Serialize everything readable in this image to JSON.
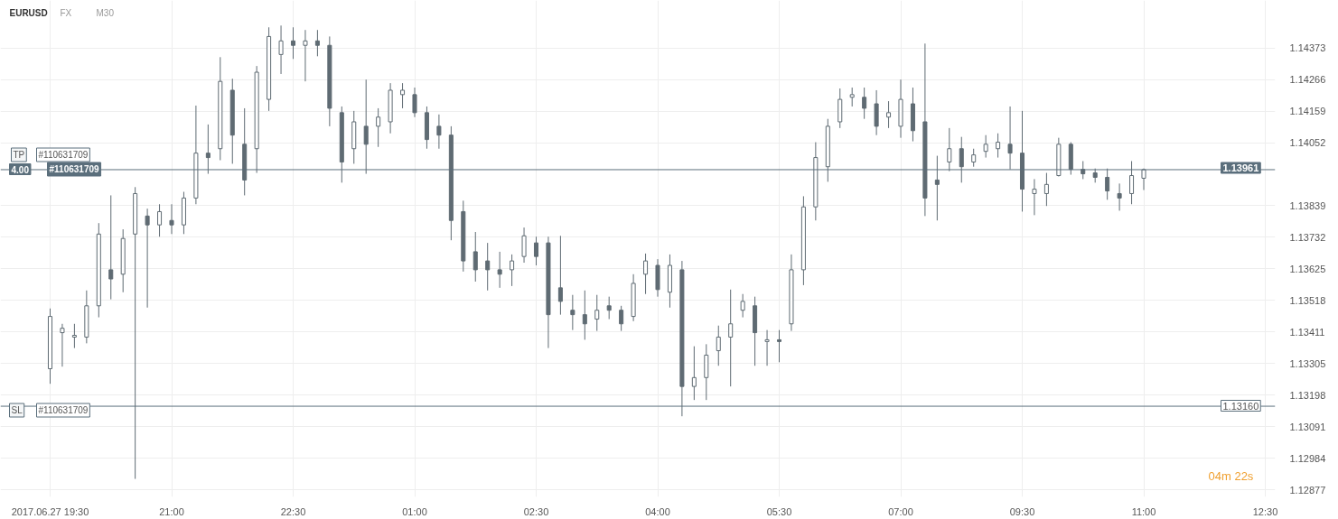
{
  "chart_data": {
    "type": "candlestick",
    "title": "EURUSD",
    "categories": [
      "2017.06.27 19:30",
      null,
      null,
      null,
      null,
      null,
      null,
      null,
      null,
      null,
      "21:00",
      null,
      null,
      null,
      null,
      null,
      null,
      null,
      null,
      null,
      "22:30",
      null,
      null,
      null,
      null,
      null,
      null,
      null,
      null,
      null,
      "01:00",
      null,
      null,
      null,
      null,
      null,
      null,
      null,
      null,
      null,
      "02:30",
      null,
      null,
      null,
      null,
      null,
      null,
      null,
      null,
      null,
      "04:00",
      null,
      null,
      null,
      null,
      null,
      null,
      null,
      null,
      null,
      "05:30",
      null,
      null,
      null,
      null,
      null,
      null,
      null,
      null,
      null,
      "07:00",
      null,
      null,
      null,
      null,
      null,
      null,
      null,
      null,
      null,
      "09:30",
      null,
      null,
      null,
      null,
      null,
      null,
      null,
      null,
      null,
      "11:00",
      null,
      null,
      null,
      null,
      null,
      null,
      null,
      null,
      null,
      "12:30"
    ],
    "ohlc": [
      [
        1.13287,
        1.13491,
        1.13236,
        1.13464
      ],
      [
        1.13409,
        1.13439,
        1.13294,
        1.13424
      ],
      [
        1.13394,
        1.13439,
        1.13357,
        1.134
      ],
      [
        1.13394,
        1.13552,
        1.13373,
        1.135
      ],
      [
        1.135,
        1.1378,
        1.13461,
        1.13743
      ],
      [
        1.13622,
        1.13874,
        1.13522,
        1.13591
      ],
      [
        1.13607,
        1.13759,
        1.13546,
        1.13728
      ],
      [
        1.13743,
        1.13902,
        1.12914,
        1.1388
      ],
      [
        1.13804,
        1.13829,
        1.13494,
        1.13774
      ],
      [
        1.13774,
        1.13844,
        1.13734,
        1.13819
      ],
      [
        1.13789,
        1.13844,
        1.13743,
        1.13774
      ],
      [
        1.13774,
        1.13886,
        1.13743,
        1.13865
      ],
      [
        1.13865,
        1.14178,
        1.13844,
        1.14017
      ],
      [
        1.14017,
        1.14114,
        1.13947,
        1.14002
      ],
      [
        1.14032,
        1.14342,
        1.13993,
        1.1426
      ],
      [
        1.1423,
        1.14269,
        1.13981,
        1.14078
      ],
      [
        1.14047,
        1.14169,
        1.13874,
        1.13926
      ],
      [
        1.14032,
        1.14312,
        1.1395,
        1.14291
      ],
      [
        1.14199,
        1.14443,
        1.1416,
        1.14412
      ],
      [
        1.14351,
        1.14449,
        1.14285,
        1.14397
      ],
      [
        1.14397,
        1.14443,
        1.14336,
        1.14382
      ],
      [
        1.14382,
        1.14434,
        1.1426,
        1.14397
      ],
      [
        1.14397,
        1.14434,
        1.14345,
        1.14382
      ],
      [
        1.14382,
        1.14412,
        1.14108,
        1.14169
      ],
      [
        1.14154,
        1.14175,
        1.13917,
        1.13987
      ],
      [
        1.14032,
        1.1416,
        1.13981,
        1.14123
      ],
      [
        1.14108,
        1.14266,
        1.13947,
        1.14047
      ],
      [
        1.14108,
        1.14169,
        1.14038,
        1.14139
      ],
      [
        1.14123,
        1.14254,
        1.14084,
        1.1423
      ],
      [
        1.14215,
        1.14254,
        1.14169,
        1.1423
      ],
      [
        1.14215,
        1.14239,
        1.14139,
        1.14154
      ],
      [
        1.14154,
        1.14175,
        1.14032,
        1.14063
      ],
      [
        1.14108,
        1.14148,
        1.14032,
        1.14078
      ],
      [
        1.14078,
        1.14108,
        1.13722,
        1.13789
      ],
      [
        1.13819,
        1.13856,
        1.13616,
        1.13652
      ],
      [
        1.13683,
        1.1375,
        1.13582,
        1.13622
      ],
      [
        1.13652,
        1.13713,
        1.13552,
        1.13622
      ],
      [
        1.13622,
        1.13683,
        1.13561,
        1.13607
      ],
      [
        1.13622,
        1.13674,
        1.13567,
        1.13652
      ],
      [
        1.13667,
        1.13765,
        1.13646,
        1.13737
      ],
      [
        1.13713,
        1.13734,
        1.13637,
        1.13667
      ],
      [
        1.13713,
        1.13734,
        1.13357,
        1.1347
      ],
      [
        1.13561,
        1.13737,
        1.1347,
        1.13515
      ],
      [
        1.13485,
        1.13537,
        1.13418,
        1.1347
      ],
      [
        1.1347,
        1.13552,
        1.13385,
        1.13439
      ],
      [
        1.13455,
        1.13537,
        1.13415,
        1.13485
      ],
      [
        1.135,
        1.13531,
        1.13455,
        1.13485
      ],
      [
        1.13485,
        1.135,
        1.13415,
        1.13439
      ],
      [
        1.13464,
        1.13607,
        1.13448,
        1.13576
      ],
      [
        1.13607,
        1.13677,
        1.1354,
        1.13652
      ],
      [
        1.13637,
        1.13658,
        1.13531,
        1.13555
      ],
      [
        1.13546,
        1.13674,
        1.13494,
        1.13637
      ],
      [
        1.13622,
        1.13652,
        1.13126,
        1.13227
      ],
      [
        1.13227,
        1.13363,
        1.13181,
        1.13257
      ],
      [
        1.13257,
        1.1337,
        1.13181,
        1.13333
      ],
      [
        1.13348,
        1.13433,
        1.13297,
        1.13394
      ],
      [
        1.13394,
        1.13555,
        1.13227,
        1.13439
      ],
      [
        1.13485,
        1.1354,
        1.13461,
        1.13515
      ],
      [
        1.135,
        1.13531,
        1.13297,
        1.13409
      ],
      [
        1.13379,
        1.13418,
        1.13297,
        1.13385
      ],
      [
        1.13385,
        1.13418,
        1.13309,
        1.13379
      ],
      [
        1.13439,
        1.13674,
        1.13415,
        1.13622
      ],
      [
        1.13622,
        1.13871,
        1.1357,
        1.13835
      ],
      [
        1.13835,
        1.14054,
        1.13789,
        1.14002
      ],
      [
        1.13971,
        1.14133,
        1.1392,
        1.14108
      ],
      [
        1.14123,
        1.14236,
        1.14102,
        1.14199
      ],
      [
        1.14206,
        1.14239,
        1.14175,
        1.14215
      ],
      [
        1.14206,
        1.14239,
        1.14133,
        1.14169
      ],
      [
        1.14184,
        1.1423,
        1.14078,
        1.14108
      ],
      [
        1.14139,
        1.14193,
        1.14102,
        1.14154
      ],
      [
        1.14108,
        1.14266,
        1.14069,
        1.14199
      ],
      [
        1.14184,
        1.14239,
        1.14057,
        1.14093
      ],
      [
        1.14123,
        1.14388,
        1.13804,
        1.13865
      ],
      [
        1.13926,
        1.14008,
        1.13789,
        1.13911
      ],
      [
        1.13987,
        1.14102,
        1.13956,
        1.14032
      ],
      [
        1.14032,
        1.14072,
        1.13917,
        1.13971
      ],
      [
        1.13987,
        1.14032,
        1.13971,
        1.14011
      ],
      [
        1.14023,
        1.14078,
        1.14002,
        1.14047
      ],
      [
        1.14032,
        1.14084,
        1.14002,
        1.14054
      ],
      [
        1.14047,
        1.14175,
        1.13962,
        1.14017
      ],
      [
        1.14017,
        1.1416,
        1.13819,
        1.13895
      ],
      [
        1.1388,
        1.13929,
        1.13807,
        1.13895
      ],
      [
        1.1388,
        1.1395,
        1.13838,
        1.13911
      ],
      [
        1.13941,
        1.14069,
        1.13938,
        1.14047
      ],
      [
        1.14047,
        1.14054,
        1.13944,
        1.13962
      ],
      [
        1.13962,
        1.1399,
        1.13929,
        1.13947
      ],
      [
        1.1395,
        1.13965,
        1.13917,
        1.13935
      ],
      [
        1.13935,
        1.13965,
        1.13859,
        1.13889
      ],
      [
        1.1388,
        1.13914,
        1.13822,
        1.13865
      ],
      [
        1.1388,
        1.1399,
        1.13844,
        1.13941
      ],
      [
        1.13932,
        1.13965,
        1.13892,
        1.13961
      ],
      null,
      null,
      null,
      null,
      null,
      null,
      null,
      null,
      null,
      null
    ],
    "color": "#5f6b73",
    "ylim": [
      1.12853,
      1.14534
    ],
    "yticks": [
      1.14373,
      1.14266,
      1.14159,
      1.14052,
      1.13839,
      1.13732,
      1.13625,
      1.13518,
      1.13411,
      1.13305,
      1.13198,
      1.13091,
      1.12984,
      1.12877
    ],
    "grid": true,
    "ref_lines": [
      {
        "axis": "y",
        "value": 1.13961,
        "label": "1.13961",
        "color": "#5b6f7c"
      },
      {
        "axis": "y",
        "value": 1.1316,
        "label": "1.13160",
        "color": "#5b6f7c"
      }
    ],
    "annotations": [
      "FX",
      "M30",
      "TP",
      "#110631709",
      "4.00",
      "#110631709",
      "SL",
      "#110631709",
      "04m 22s"
    ]
  }
}
